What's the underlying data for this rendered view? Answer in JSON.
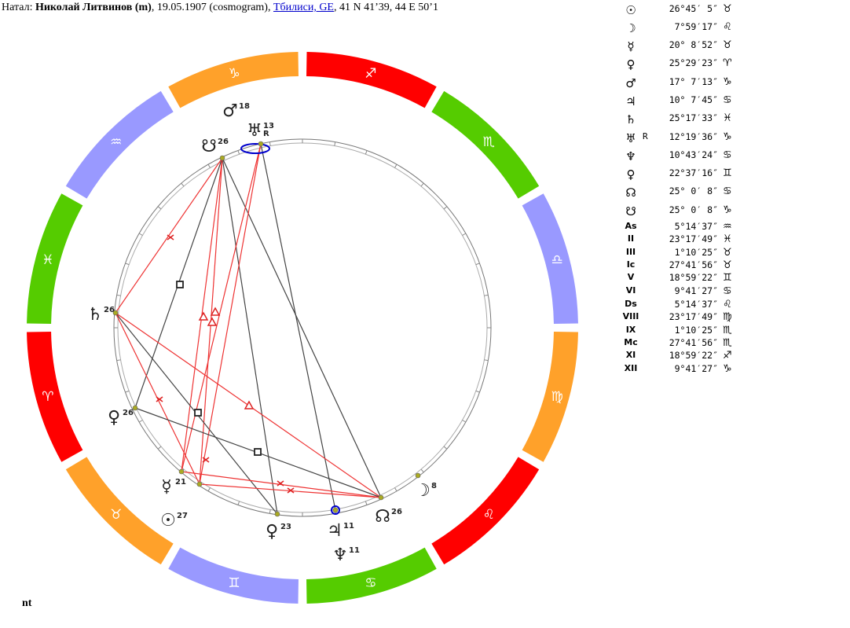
{
  "header": {
    "prefix": "Натал: ",
    "name": "Николай Литвинов (m)",
    "date": ", 19.05.1907 (cosmogram), ",
    "place_link": "Тбилиси, GE",
    "coords": ", 41 N 41’39, 44 E 50’1"
  },
  "footer": {
    "mark": "nt"
  },
  "colors": {
    "fire": "#ff0000",
    "earth": "#ffa12a",
    "air": "#9999ff",
    "water": "#55cc00",
    "aspect_hard": "#444444",
    "aspect_soft": "#ee3333",
    "planet_dot": "#aaaa22",
    "highlight": "#0000cc"
  },
  "zodiac_ring": [
    {
      "sign": "♑",
      "name": "capricorn",
      "element": "earth"
    },
    {
      "sign": "♐",
      "name": "sagittarius",
      "element": "fire"
    },
    {
      "sign": "♏",
      "name": "scorpio",
      "element": "water"
    },
    {
      "sign": "♎",
      "name": "libra",
      "element": "air"
    },
    {
      "sign": "♍",
      "name": "virgo",
      "element": "earth"
    },
    {
      "sign": "♌",
      "name": "leo",
      "element": "fire"
    },
    {
      "sign": "♋",
      "name": "cancer",
      "element": "water"
    },
    {
      "sign": "♊",
      "name": "gemini",
      "element": "air"
    },
    {
      "sign": "♉",
      "name": "taurus",
      "element": "earth"
    },
    {
      "sign": "♈",
      "name": "aries",
      "element": "fire"
    },
    {
      "sign": "♓",
      "name": "pisces",
      "element": "water"
    },
    {
      "sign": "♒",
      "name": "aquarius",
      "element": "air"
    }
  ],
  "chart_planets": [
    {
      "name": "mars",
      "glyph": "♂",
      "deg": "18"
    },
    {
      "name": "uranus",
      "glyph": "♅",
      "deg": "13",
      "retro": "R"
    },
    {
      "name": "south-node",
      "glyph": "☋",
      "deg": "26"
    },
    {
      "name": "saturn",
      "glyph": "♄",
      "deg": "26"
    },
    {
      "name": "venus",
      "glyph": "♀",
      "deg": "26"
    },
    {
      "name": "mercury",
      "glyph": "☿",
      "deg": "21"
    },
    {
      "name": "sun",
      "glyph": "☉",
      "deg": "27"
    },
    {
      "name": "proserpina",
      "glyph": "♀",
      "deg": "23"
    },
    {
      "name": "jupiter",
      "glyph": "♃",
      "deg": "11"
    },
    {
      "name": "neptune",
      "glyph": "♆",
      "deg": "11"
    },
    {
      "name": "north-node",
      "glyph": "☊",
      "deg": "26"
    },
    {
      "name": "moon",
      "glyph": "☽",
      "deg": "8"
    }
  ],
  "positions": [
    {
      "name": "sun",
      "glyph": "☉",
      "retro": "",
      "deg": "26°45′ 5″",
      "sign": "♉"
    },
    {
      "name": "moon",
      "glyph": "☽",
      "retro": "",
      "deg": "7°59′17″",
      "sign": "♌"
    },
    {
      "name": "mercury",
      "glyph": "☿",
      "retro": "",
      "deg": "20° 8′52″",
      "sign": "♉"
    },
    {
      "name": "venus",
      "glyph": "♀",
      "retro": "",
      "deg": "25°29′23″",
      "sign": "♈"
    },
    {
      "name": "mars",
      "glyph": "♂",
      "retro": "",
      "deg": "17° 7′13″",
      "sign": "♑"
    },
    {
      "name": "jupiter",
      "glyph": "♃",
      "retro": "",
      "deg": "10° 7′45″",
      "sign": "♋"
    },
    {
      "name": "saturn",
      "glyph": "♄",
      "retro": "",
      "deg": "25°17′33″",
      "sign": "♓"
    },
    {
      "name": "uranus",
      "glyph": "♅",
      "retro": "R",
      "deg": "12°19′36″",
      "sign": "♑"
    },
    {
      "name": "neptune",
      "glyph": "♆",
      "retro": "",
      "deg": "10°43′24″",
      "sign": "♋"
    },
    {
      "name": "proserpina",
      "glyph": "♀",
      "retro": "",
      "deg": "22°37′16″",
      "sign": "♊"
    },
    {
      "name": "north-node",
      "glyph": "☊",
      "retro": "",
      "deg": "25° 0′ 8″",
      "sign": "♋"
    },
    {
      "name": "south-node",
      "glyph": "☋",
      "retro": "",
      "deg": "25° 0′ 8″",
      "sign": "♑"
    },
    {
      "name": "ascendant",
      "glyph": "As",
      "retro": "",
      "deg": "5°14′37″",
      "sign": "♒"
    },
    {
      "name": "house-2",
      "glyph": "II",
      "retro": "",
      "deg": "23°17′49″",
      "sign": "♓"
    },
    {
      "name": "house-3",
      "glyph": "III",
      "retro": "",
      "deg": "1°10′25″",
      "sign": "♉"
    },
    {
      "name": "imum-coeli",
      "glyph": "Ic",
      "retro": "",
      "deg": "27°41′56″",
      "sign": "♉"
    },
    {
      "name": "house-5",
      "glyph": "V",
      "retro": "",
      "deg": "18°59′22″",
      "sign": "♊"
    },
    {
      "name": "house-6",
      "glyph": "VI",
      "retro": "",
      "deg": "9°41′27″",
      "sign": "♋"
    },
    {
      "name": "descendant",
      "glyph": "Ds",
      "retro": "",
      "deg": "5°14′37″",
      "sign": "♌"
    },
    {
      "name": "house-8",
      "glyph": "VIII",
      "retro": "",
      "deg": "23°17′49″",
      "sign": "♍"
    },
    {
      "name": "house-9",
      "glyph": "IX",
      "retro": "",
      "deg": "1°10′25″",
      "sign": "♏"
    },
    {
      "name": "medium-coeli",
      "glyph": "Mc",
      "retro": "",
      "deg": "27°41′56″",
      "sign": "♏"
    },
    {
      "name": "house-11",
      "glyph": "XI",
      "retro": "",
      "deg": "18°59′22″",
      "sign": "♐"
    },
    {
      "name": "house-12",
      "glyph": "XII",
      "retro": "",
      "deg": "9°41′27″",
      "sign": "♑"
    }
  ]
}
